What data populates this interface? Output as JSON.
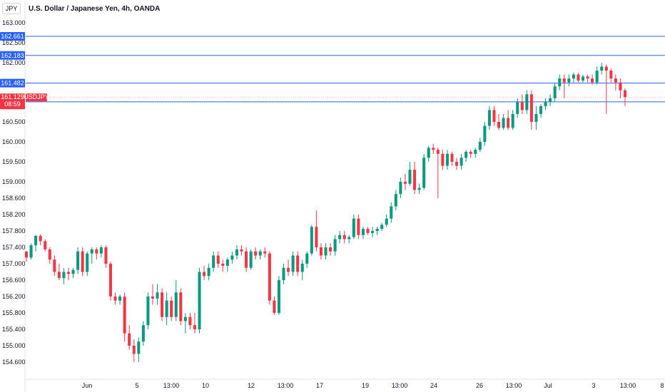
{
  "currency_badge": "JPY",
  "header": {
    "title": "U.S. Dollar / Japanese Yen, 4h, OANDA"
  },
  "chart_data": {
    "type": "candlestick",
    "title": "U.S. Dollar / Japanese Yen, 4h, OANDA",
    "symbol": "USDJPY",
    "y_axis_ticks": [
      163.0,
      162.5,
      162.0,
      160.5,
      160.0,
      159.5,
      159.0,
      158.6,
      158.2,
      157.8,
      157.4,
      157.0,
      156.6,
      156.2,
      155.8,
      155.4,
      155.0,
      154.6
    ],
    "x_axis_ticks": [
      "Jun",
      "5",
      "13:00",
      "10",
      "12",
      "13:00",
      "17",
      "19",
      "13:00",
      "24",
      "26",
      "13:00",
      "Jul",
      "3",
      "13:00",
      "8"
    ],
    "ylim": [
      154.4,
      163.3
    ],
    "price_levels": [
      {
        "label": "162.661",
        "value": 162.661,
        "color": "#2962ff"
      },
      {
        "label": "162.183",
        "value": 162.183,
        "color": "#2962ff"
      },
      {
        "label": "161.482",
        "value": 161.482,
        "color": "#2962ff"
      },
      {
        "label": "161.008",
        "value": 161.008,
        "color": "#2962ff"
      }
    ],
    "current_price": {
      "value": 161.129,
      "label": "161.129",
      "countdown": "08:59",
      "symbol": "USDJPY",
      "color": "#f23645"
    },
    "up_color": "#089981",
    "down_color": "#f23645",
    "candles": [
      [
        157.3,
        157.3,
        157.05,
        157.15
      ],
      [
        157.15,
        157.5,
        157.1,
        157.45
      ],
      [
        157.45,
        157.7,
        157.3,
        157.68
      ],
      [
        157.68,
        157.72,
        157.45,
        157.55
      ],
      [
        157.55,
        157.6,
        157.3,
        157.35
      ],
      [
        157.35,
        157.4,
        157.0,
        157.1
      ],
      [
        157.1,
        157.2,
        156.7,
        156.8
      ],
      [
        156.8,
        157.0,
        156.6,
        156.65
      ],
      [
        156.65,
        156.9,
        156.5,
        156.8
      ],
      [
        156.8,
        156.9,
        156.6,
        156.75
      ],
      [
        156.75,
        156.9,
        156.65,
        156.85
      ],
      [
        156.85,
        157.4,
        156.75,
        157.3
      ],
      [
        157.3,
        157.4,
        156.7,
        156.8
      ],
      [
        156.8,
        157.3,
        156.7,
        157.25
      ],
      [
        157.25,
        157.4,
        157.0,
        157.35
      ],
      [
        157.35,
        157.4,
        157.1,
        157.25
      ],
      [
        157.25,
        157.45,
        157.15,
        157.4
      ],
      [
        157.4,
        157.45,
        156.9,
        157.0
      ],
      [
        157.0,
        157.05,
        156.1,
        156.2
      ],
      [
        156.2,
        156.3,
        156.0,
        156.1
      ],
      [
        156.1,
        156.25,
        156.0,
        156.2
      ],
      [
        156.2,
        156.3,
        155.1,
        155.3
      ],
      [
        155.3,
        155.5,
        154.9,
        155.0
      ],
      [
        155.0,
        155.15,
        154.6,
        154.8
      ],
      [
        154.8,
        155.2,
        154.6,
        155.1
      ],
      [
        155.1,
        155.6,
        155.0,
        155.5
      ],
      [
        155.5,
        156.3,
        155.4,
        156.2
      ],
      [
        156.2,
        156.5,
        156.0,
        156.15
      ],
      [
        156.15,
        156.5,
        156.0,
        156.3
      ],
      [
        156.3,
        156.4,
        155.6,
        155.7
      ],
      [
        155.7,
        156.3,
        155.5,
        156.1
      ],
      [
        156.1,
        156.2,
        155.6,
        155.7
      ],
      [
        155.7,
        156.6,
        155.6,
        156.3
      ],
      [
        156.3,
        156.4,
        155.5,
        155.6
      ],
      [
        155.6,
        155.8,
        155.3,
        155.7
      ],
      [
        155.7,
        155.8,
        155.4,
        155.5
      ],
      [
        155.5,
        155.8,
        155.3,
        155.4
      ],
      [
        155.4,
        156.9,
        155.3,
        156.8
      ],
      [
        156.8,
        156.95,
        156.6,
        156.7
      ],
      [
        156.7,
        157.0,
        156.6,
        156.9
      ],
      [
        156.9,
        157.3,
        156.8,
        157.2
      ],
      [
        157.2,
        157.3,
        156.9,
        157.0
      ],
      [
        157.0,
        157.1,
        156.8,
        156.95
      ],
      [
        156.95,
        157.15,
        156.8,
        157.1
      ],
      [
        157.1,
        157.3,
        157.0,
        157.2
      ],
      [
        157.2,
        157.45,
        157.1,
        157.35
      ],
      [
        157.35,
        157.45,
        157.2,
        157.3
      ],
      [
        157.3,
        157.4,
        156.8,
        156.9
      ],
      [
        156.9,
        157.35,
        156.85,
        157.3
      ],
      [
        157.3,
        157.4,
        157.1,
        157.2
      ],
      [
        157.2,
        157.35,
        157.1,
        157.3
      ],
      [
        157.3,
        157.4,
        157.15,
        157.25
      ],
      [
        157.25,
        157.3,
        156.0,
        156.1
      ],
      [
        156.1,
        156.2,
        155.75,
        155.8
      ],
      [
        155.8,
        156.7,
        155.75,
        156.6
      ],
      [
        156.6,
        157.0,
        156.5,
        156.9
      ],
      [
        156.9,
        157.1,
        156.7,
        156.8
      ],
      [
        156.8,
        157.3,
        156.7,
        157.2
      ],
      [
        157.2,
        157.3,
        156.7,
        156.8
      ],
      [
        156.8,
        157.1,
        156.6,
        157.0
      ],
      [
        157.0,
        157.3,
        156.9,
        157.25
      ],
      [
        157.25,
        157.95,
        157.2,
        157.9
      ],
      [
        157.9,
        158.3,
        157.3,
        157.4
      ],
      [
        157.4,
        157.5,
        157.1,
        157.2
      ],
      [
        157.2,
        157.5,
        157.1,
        157.4
      ],
      [
        157.4,
        157.5,
        157.2,
        157.3
      ],
      [
        157.3,
        157.7,
        157.2,
        157.6
      ],
      [
        157.6,
        157.8,
        157.5,
        157.7
      ],
      [
        157.7,
        157.8,
        157.5,
        157.6
      ],
      [
        157.6,
        157.7,
        157.5,
        157.65
      ],
      [
        157.65,
        158.2,
        157.6,
        158.1
      ],
      [
        158.1,
        158.2,
        157.6,
        157.7
      ],
      [
        157.7,
        157.9,
        157.6,
        157.85
      ],
      [
        157.85,
        157.9,
        157.7,
        157.75
      ],
      [
        157.75,
        157.9,
        157.65,
        157.8
      ],
      [
        157.8,
        157.9,
        157.7,
        157.85
      ],
      [
        157.85,
        158.0,
        157.8,
        157.95
      ],
      [
        157.95,
        158.2,
        157.9,
        158.1
      ],
      [
        158.1,
        158.5,
        158.0,
        158.4
      ],
      [
        158.4,
        158.8,
        158.3,
        158.7
      ],
      [
        158.7,
        159.1,
        158.6,
        159.0
      ],
      [
        159.0,
        159.2,
        158.8,
        158.95
      ],
      [
        158.95,
        159.5,
        158.9,
        159.3
      ],
      [
        159.3,
        159.5,
        158.7,
        158.8
      ],
      [
        158.8,
        158.95,
        158.7,
        158.85
      ],
      [
        158.85,
        159.7,
        158.8,
        159.6
      ],
      [
        159.6,
        159.9,
        159.5,
        159.85
      ],
      [
        159.85,
        159.95,
        159.7,
        159.8
      ],
      [
        159.8,
        159.85,
        158.6,
        159.7
      ],
      [
        159.7,
        159.8,
        159.3,
        159.4
      ],
      [
        159.4,
        159.8,
        159.3,
        159.7
      ],
      [
        159.7,
        159.75,
        159.4,
        159.5
      ],
      [
        159.5,
        159.6,
        159.3,
        159.4
      ],
      [
        159.4,
        159.7,
        159.3,
        159.6
      ],
      [
        159.6,
        159.8,
        159.5,
        159.75
      ],
      [
        159.75,
        159.8,
        159.6,
        159.7
      ],
      [
        159.7,
        159.85,
        159.6,
        159.8
      ],
      [
        159.8,
        160.1,
        159.75,
        160.0
      ],
      [
        160.0,
        160.5,
        159.9,
        160.4
      ],
      [
        160.4,
        160.9,
        160.3,
        160.8
      ],
      [
        160.8,
        160.9,
        160.4,
        160.5
      ],
      [
        160.5,
        160.7,
        160.3,
        160.35
      ],
      [
        160.35,
        160.7,
        160.3,
        160.6
      ],
      [
        160.6,
        160.8,
        160.3,
        160.35
      ],
      [
        160.35,
        160.8,
        160.3,
        160.7
      ],
      [
        160.7,
        161.1,
        160.6,
        161.0
      ],
      [
        161.0,
        161.2,
        160.7,
        160.8
      ],
      [
        160.8,
        161.3,
        160.7,
        161.2
      ],
      [
        161.2,
        161.3,
        160.3,
        160.5
      ],
      [
        160.5,
        160.9,
        160.3,
        160.7
      ],
      [
        160.7,
        160.95,
        160.6,
        160.9
      ],
      [
        160.9,
        161.1,
        160.8,
        161.0
      ],
      [
        161.0,
        161.2,
        160.9,
        161.1
      ],
      [
        161.1,
        161.5,
        161.0,
        161.4
      ],
      [
        161.4,
        161.7,
        161.3,
        161.6
      ],
      [
        161.6,
        161.7,
        161.1,
        161.5
      ],
      [
        161.5,
        161.7,
        161.4,
        161.6
      ],
      [
        161.6,
        161.75,
        161.5,
        161.7
      ],
      [
        161.7,
        161.75,
        161.5,
        161.55
      ],
      [
        161.55,
        161.7,
        161.5,
        161.65
      ],
      [
        161.65,
        161.7,
        161.5,
        161.6
      ],
      [
        161.6,
        161.7,
        161.45,
        161.5
      ],
      [
        161.5,
        161.9,
        161.45,
        161.8
      ],
      [
        161.8,
        162.0,
        161.7,
        161.9
      ],
      [
        161.9,
        161.95,
        160.7,
        161.8
      ],
      [
        161.8,
        161.85,
        161.5,
        161.6
      ],
      [
        161.6,
        161.7,
        161.3,
        161.5
      ],
      [
        161.5,
        161.6,
        161.1,
        161.3
      ],
      [
        161.3,
        161.35,
        160.9,
        161.13
      ]
    ]
  }
}
